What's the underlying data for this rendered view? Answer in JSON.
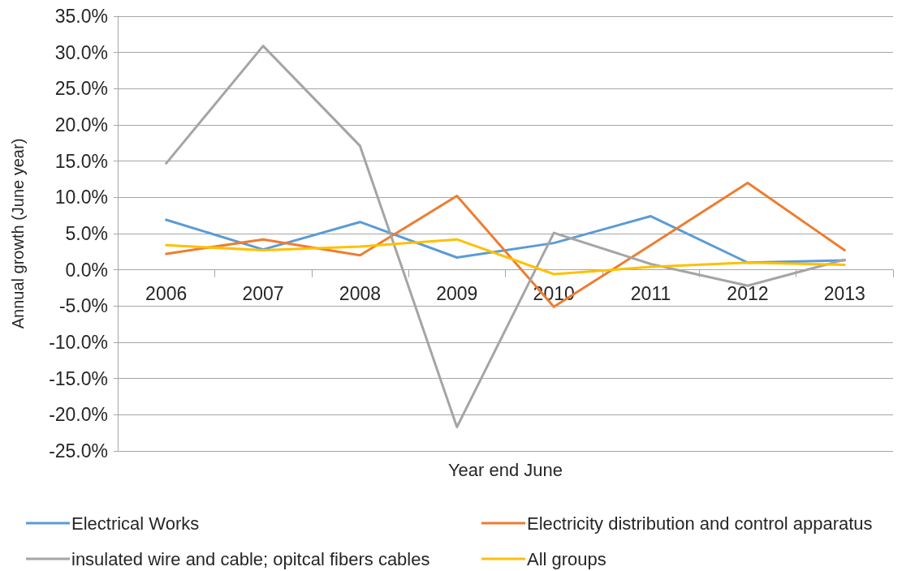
{
  "chart_data": {
    "type": "line",
    "xlabel": "Year end June",
    "ylabel": "Annual growth (June year)",
    "categories": [
      "2006",
      "2007",
      "2008",
      "2009",
      "2010",
      "2011",
      "2012",
      "2013"
    ],
    "series": [
      {
        "name": "Electrical Works",
        "color": "#5b9bd5",
        "values": [
          6.9,
          2.8,
          6.6,
          1.7,
          3.7,
          7.4,
          1.0,
          1.3
        ]
      },
      {
        "name": "Electricity distribution and control apparatus",
        "color": "#ed7d31",
        "values": [
          2.2,
          4.2,
          2.0,
          10.2,
          -5.1,
          3.4,
          12.0,
          2.7
        ]
      },
      {
        "name": "insulated wire and cable; opitcal fibers cables",
        "color": "#a5a5a5",
        "values": [
          14.7,
          30.9,
          17.1,
          -21.7,
          5.1,
          0.8,
          -2.2,
          1.4
        ]
      },
      {
        "name": "All groups",
        "color": "#ffc000",
        "values": [
          3.4,
          2.7,
          3.2,
          4.2,
          -0.6,
          0.4,
          1.0,
          0.7
        ]
      }
    ],
    "ylim": [
      -25,
      35
    ],
    "yticks": [
      {
        "value": -25,
        "label": "-25.0%"
      },
      {
        "value": -20,
        "label": "-20.0%"
      },
      {
        "value": -15,
        "label": "-15.0%"
      },
      {
        "value": -10,
        "label": "-10.0%"
      },
      {
        "value": -5,
        "label": "-5.0%"
      },
      {
        "value": 0,
        "label": "0.0%"
      },
      {
        "value": 5,
        "label": "5.0%"
      },
      {
        "value": 10,
        "label": "10.0%"
      },
      {
        "value": 15,
        "label": "15.0%"
      },
      {
        "value": 20,
        "label": "20.0%"
      },
      {
        "value": 25,
        "label": "25.0%"
      },
      {
        "value": 30,
        "label": "30.0%"
      },
      {
        "value": 35,
        "label": "35.0%"
      }
    ],
    "grid": "y",
    "legend": "bottom",
    "marker": "none",
    "line_style": "solid"
  }
}
